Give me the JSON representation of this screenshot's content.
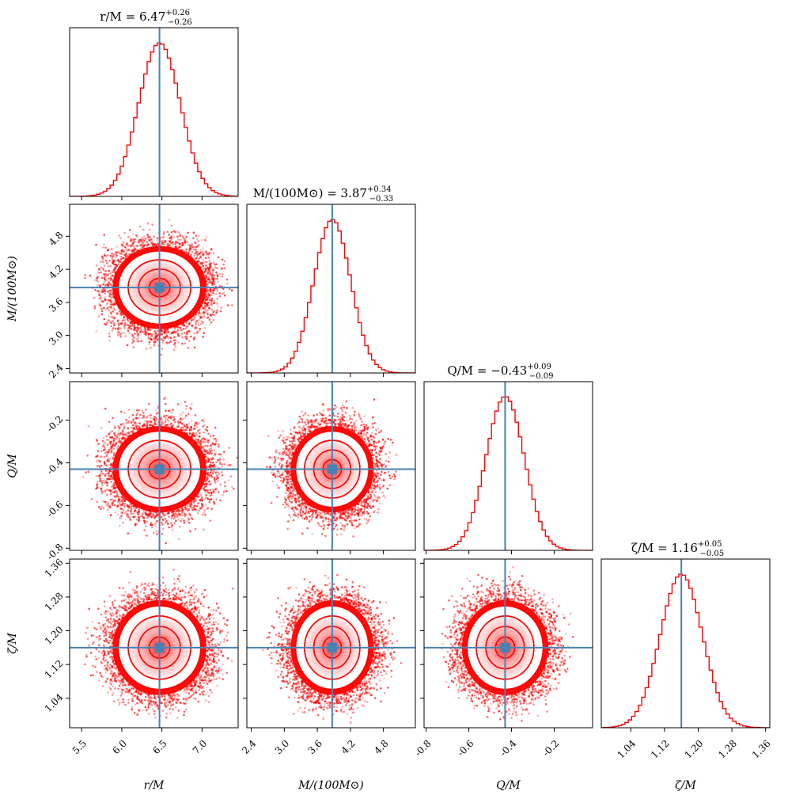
{
  "figure": {
    "colors": {
      "hist": "#ff0000",
      "density": "#ff0000",
      "truth": "#4682b4",
      "axes": "#000000"
    }
  },
  "chart_data": {
    "type": "corner",
    "parameters": [
      {
        "key": "r",
        "label": "r/M",
        "median": 6.47,
        "plus": 0.26,
        "minus": 0.26,
        "title": "r/M = 6.47",
        "title_plus": "+0.26",
        "title_minus": "−0.26",
        "range": [
          5.35,
          7.45
        ],
        "ticks": [
          5.5,
          6.0,
          6.5,
          7.0
        ],
        "tick_labels": [
          "5.5",
          "6.0",
          "6.5",
          "7.0"
        ]
      },
      {
        "key": "M",
        "label": "M/(100M⊙)",
        "median": 3.87,
        "plus": 0.34,
        "minus": 0.33,
        "title": "M/(100M⊙) = 3.87",
        "title_plus": "+0.34",
        "title_minus": "−0.33",
        "range": [
          2.32,
          5.38
        ],
        "ticks": [
          2.4,
          3.0,
          3.6,
          4.2,
          4.8
        ],
        "tick_labels": [
          "2.4",
          "3.0",
          "3.6",
          "4.2",
          "4.8"
        ]
      },
      {
        "key": "Q",
        "label": "Q/M",
        "median": -0.43,
        "plus": 0.09,
        "minus": 0.09,
        "title": "Q/M = −0.43",
        "title_plus": "+0.09",
        "title_minus": "−0.09",
        "range": [
          -0.81,
          -0.02
        ],
        "ticks": [
          -0.8,
          -0.6,
          -0.4,
          -0.2
        ],
        "tick_labels": [
          "-0.8",
          "-0.6",
          "-0.4",
          "-0.2"
        ]
      },
      {
        "key": "zeta",
        "label": "ζ/M",
        "median": 1.16,
        "plus": 0.05,
        "minus": 0.05,
        "title": "ζ/M = 1.16",
        "title_plus": "+0.05",
        "title_minus": "−0.05",
        "range": [
          0.97,
          1.37
        ],
        "ticks": [
          1.04,
          1.12,
          1.2,
          1.28,
          1.36
        ],
        "tick_labels": [
          "1.04",
          "1.12",
          "1.20",
          "1.28",
          "1.36"
        ]
      }
    ],
    "truth_values": [
      6.47,
      3.87,
      -0.43,
      1.16
    ],
    "contour_levels_sigma": [
      0.5,
      1.0,
      1.5,
      2.0
    ]
  }
}
